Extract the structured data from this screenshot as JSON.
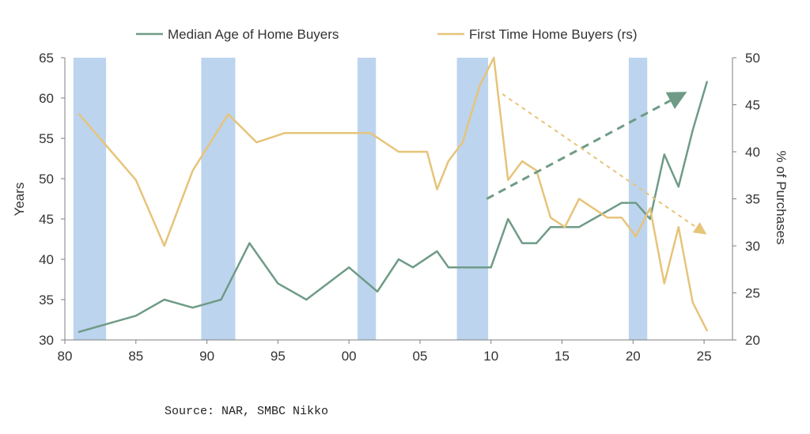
{
  "chart_data": {
    "type": "line",
    "legend_position": "top",
    "grid": false,
    "x_axis": {
      "range": [
        1980,
        2027
      ],
      "ticks": [
        1980,
        1985,
        1990,
        1995,
        2000,
        2005,
        2010,
        2015,
        2020,
        2025
      ],
      "tick_labels": [
        "80",
        "85",
        "90",
        "95",
        "00",
        "05",
        "10",
        "15",
        "20",
        "25"
      ]
    },
    "y_left": {
      "label": "Years",
      "range": [
        30,
        65
      ],
      "ticks": [
        30,
        35,
        40,
        45,
        50,
        55,
        60,
        65
      ]
    },
    "y_right": {
      "label": "% of Purchases",
      "range": [
        20,
        50
      ],
      "ticks": [
        20,
        25,
        30,
        35,
        40,
        45,
        50
      ]
    },
    "shaded_periods": [
      [
        1980.6,
        1982.9
      ],
      [
        1989.6,
        1992.0
      ],
      [
        2000.6,
        2001.9
      ],
      [
        2007.6,
        2009.8
      ],
      [
        2019.7,
        2021.0
      ]
    ],
    "series": [
      {
        "name": "Median Age of Home Buyers",
        "axis": "left",
        "color": "#6f9b86",
        "points": [
          [
            1981,
            31
          ],
          [
            1985,
            33
          ],
          [
            1987,
            35
          ],
          [
            1989,
            34
          ],
          [
            1991,
            35
          ],
          [
            1993,
            42
          ],
          [
            1995,
            37
          ],
          [
            1997,
            35
          ],
          [
            2000,
            39
          ],
          [
            2002,
            36
          ],
          [
            2003.5,
            40
          ],
          [
            2004.5,
            39
          ],
          [
            2006.2,
            41
          ],
          [
            2007,
            39
          ],
          [
            2008,
            39
          ],
          [
            2009,
            39
          ],
          [
            2010,
            39
          ],
          [
            2011.2,
            45
          ],
          [
            2012.2,
            42
          ],
          [
            2013.2,
            42
          ],
          [
            2014.2,
            44
          ],
          [
            2015.2,
            44
          ],
          [
            2016.2,
            44
          ],
          [
            2017.2,
            45
          ],
          [
            2018.2,
            46
          ],
          [
            2019.2,
            47
          ],
          [
            2020.2,
            47
          ],
          [
            2021.2,
            45
          ],
          [
            2022.2,
            53
          ],
          [
            2023.2,
            49
          ],
          [
            2024.2,
            56
          ],
          [
            2025.2,
            62
          ]
        ]
      },
      {
        "name": "First Time Home Buyers (rs)",
        "axis": "right",
        "color": "#e6c47a",
        "points": [
          [
            1981,
            44
          ],
          [
            1985,
            37
          ],
          [
            1987,
            30
          ],
          [
            1989,
            38
          ],
          [
            1991.5,
            44
          ],
          [
            1993.5,
            41
          ],
          [
            1995.5,
            42
          ],
          [
            1997,
            42
          ],
          [
            1999,
            42
          ],
          [
            2001.5,
            42
          ],
          [
            2003.5,
            40
          ],
          [
            2004.5,
            40
          ],
          [
            2005.5,
            40
          ],
          [
            2006.2,
            36
          ],
          [
            2007,
            39
          ],
          [
            2008,
            41
          ],
          [
            2009.2,
            47
          ],
          [
            2010.2,
            50
          ],
          [
            2011.2,
            37
          ],
          [
            2012.2,
            39
          ],
          [
            2013.2,
            38
          ],
          [
            2014.2,
            33
          ],
          [
            2015.2,
            32
          ],
          [
            2016.2,
            35
          ],
          [
            2017.2,
            34
          ],
          [
            2018.2,
            33
          ],
          [
            2019.2,
            33
          ],
          [
            2020.2,
            31
          ],
          [
            2021.2,
            34
          ],
          [
            2022.2,
            26
          ],
          [
            2023.2,
            32
          ],
          [
            2024.2,
            24
          ],
          [
            2025.2,
            21
          ]
        ]
      }
    ],
    "trend_arrows": [
      {
        "color": "#6f9b86",
        "axis": "left",
        "from": [
          2009.7,
          47.5
        ],
        "to": [
          2023.5,
          60.5
        ]
      },
      {
        "color": "#e6c47a",
        "axis": "left",
        "from": [
          2010.8,
          60.5
        ],
        "to": [
          2025,
          43.3
        ]
      }
    ]
  },
  "source_text": "Source: NAR, SMBC Nikko",
  "colors": {
    "shade": "#bcd4ee",
    "axis": "#7f7f7f"
  }
}
